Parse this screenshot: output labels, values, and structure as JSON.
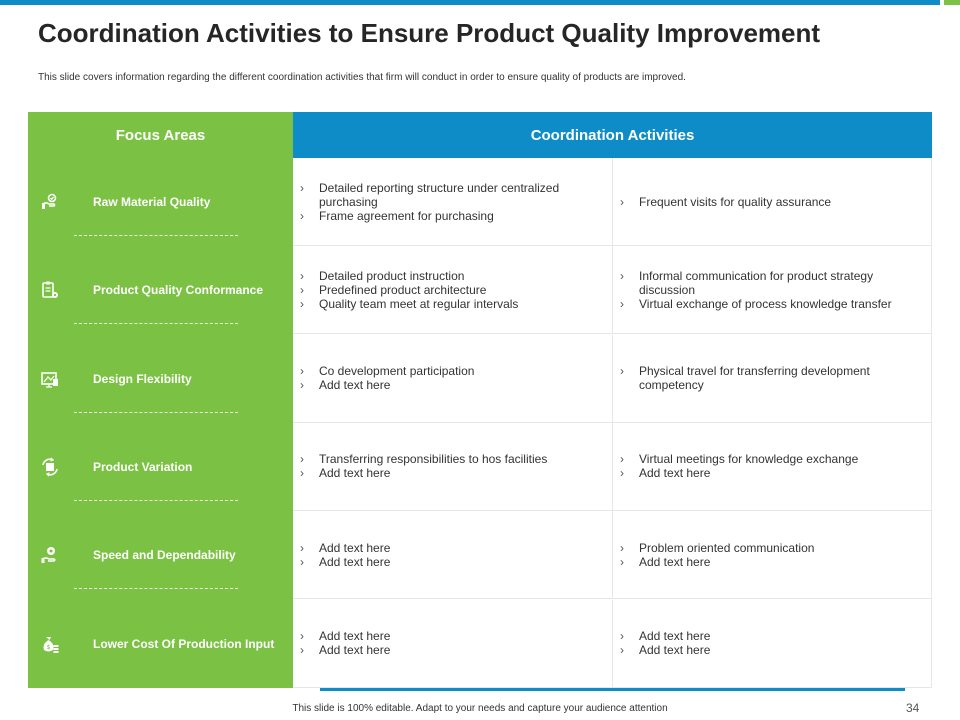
{
  "title": "Coordination Activities to Ensure Product Quality Improvement",
  "subtitle": "This slide covers information regarding the different coordination activities that firm will conduct in order to ensure quality of products are improved.",
  "focus_header": "Focus Areas",
  "activities_header": "Coordination Activities",
  "rows": [
    {
      "focus": "Raw Material Quality",
      "icon": "hand-quality-icon",
      "col1": [
        "Detailed reporting structure under centralized purchasing",
        "Frame agreement for purchasing"
      ],
      "col2": [
        "Frequent visits for quality assurance"
      ]
    },
    {
      "focus": "Product Quality Conformance",
      "icon": "clipboard-gear-icon",
      "col1": [
        "Detailed product instruction",
        "Predefined product architecture",
        "Quality team meet at regular intervals"
      ],
      "col2": [
        "Informal communication for product strategy discussion",
        "Virtual exchange of process knowledge transfer"
      ]
    },
    {
      "focus": "Design Flexibility",
      "icon": "design-board-icon",
      "col1": [
        "Co development participation",
        "Add text here"
      ],
      "col2": [
        "Physical travel for transferring development competency"
      ]
    },
    {
      "focus": "Product Variation",
      "icon": "product-exchange-icon",
      "col1": [
        "Transferring responsibilities to hos facilities",
        "Add text here"
      ],
      "col2": [
        "Virtual meetings for knowledge exchange",
        "Add text here"
      ]
    },
    {
      "focus": "Speed and Dependability",
      "icon": "hand-gear-icon",
      "col1": [
        "Add text here",
        "Add text here"
      ],
      "col2": [
        "Problem oriented communication",
        "Add text here"
      ]
    },
    {
      "focus": "Lower Cost Of Production Input",
      "icon": "money-bag-icon",
      "col1": [
        "Add text here",
        "Add text here"
      ],
      "col2": [
        "Add text here",
        "Add text here"
      ]
    }
  ],
  "footer": "This slide is 100% editable.  Adapt to your needs and capture your audience attention",
  "page_number": "34",
  "colors": {
    "green": "#7BC143",
    "blue": "#0E8CC8"
  }
}
